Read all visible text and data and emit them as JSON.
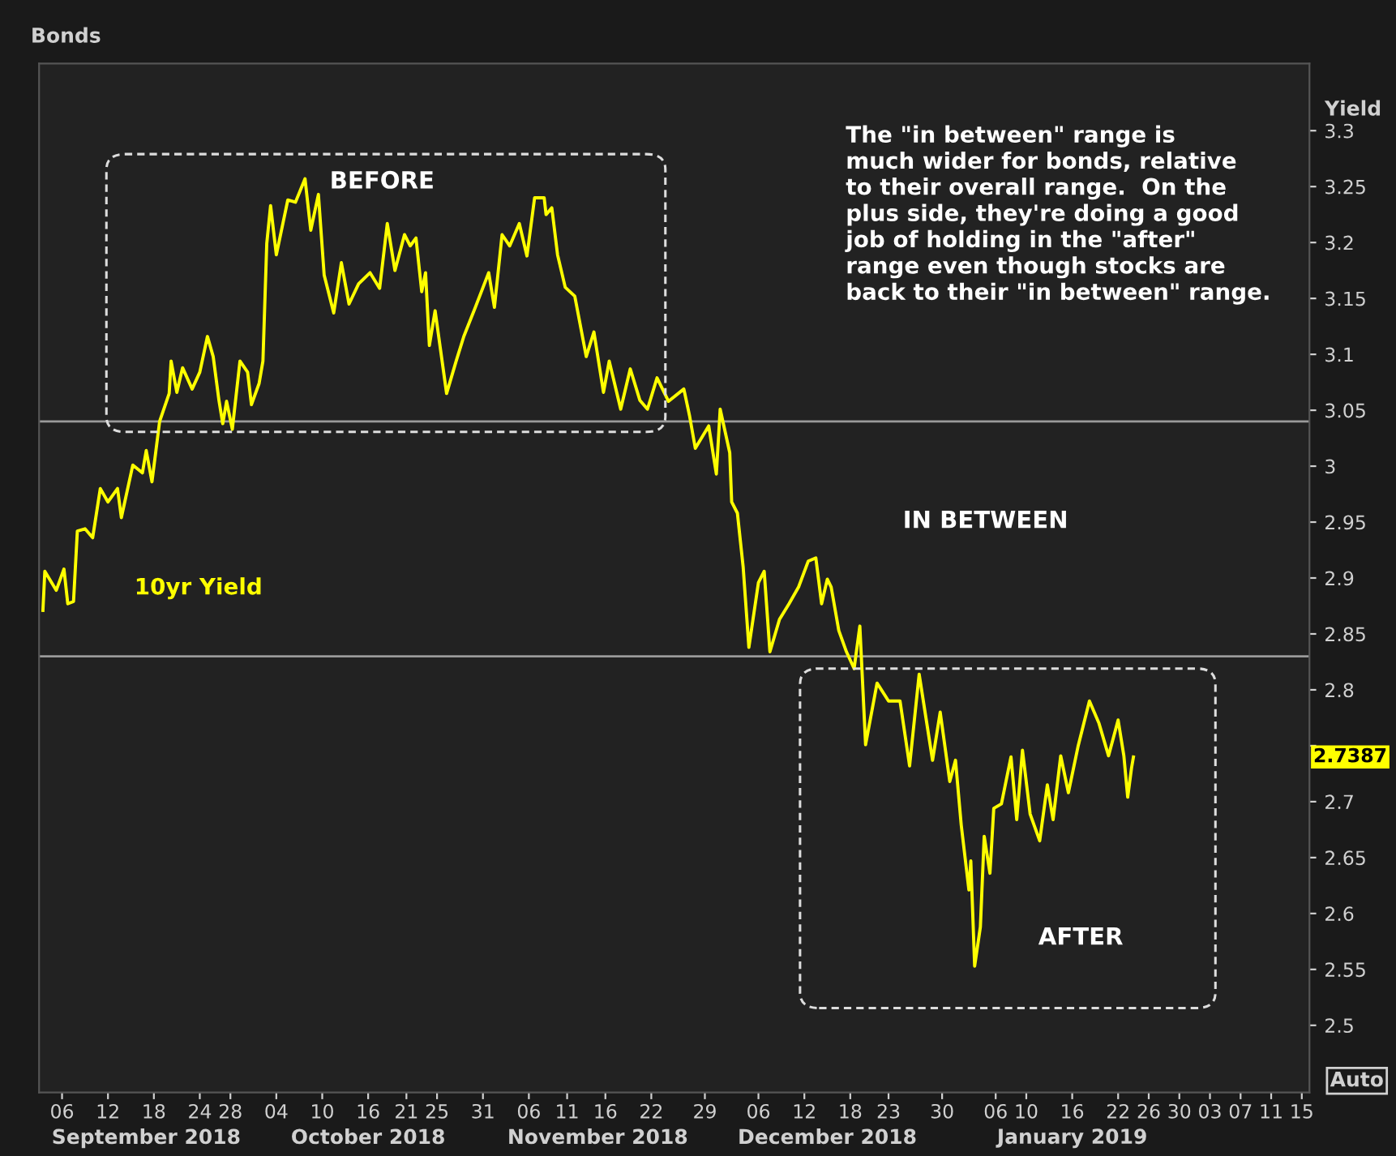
{
  "chart_data": {
    "type": "line",
    "title": "Bonds",
    "ylabel": "Yield",
    "xlim": [
      "2018-09-03",
      "2019-02-16"
    ],
    "ylim": [
      2.44,
      3.36
    ],
    "xticks": [
      {
        "value": "2018-09-06",
        "label": "06"
      },
      {
        "value": "2018-09-12",
        "label": "12"
      },
      {
        "value": "2018-09-18",
        "label": "18"
      },
      {
        "value": "2018-09-24",
        "label": "24"
      },
      {
        "value": "2018-09-28",
        "label": "28"
      },
      {
        "value": "2018-10-04",
        "label": "04"
      },
      {
        "value": "2018-10-10",
        "label": "10"
      },
      {
        "value": "2018-10-16",
        "label": "16"
      },
      {
        "value": "2018-10-21",
        "label": "21"
      },
      {
        "value": "2018-10-25",
        "label": "25"
      },
      {
        "value": "2018-10-31",
        "label": "31"
      },
      {
        "value": "2018-11-06",
        "label": "06"
      },
      {
        "value": "2018-11-11",
        "label": "11"
      },
      {
        "value": "2018-11-16",
        "label": "16"
      },
      {
        "value": "2018-11-22",
        "label": "22"
      },
      {
        "value": "2018-11-29",
        "label": "29"
      },
      {
        "value": "2018-12-06",
        "label": "06"
      },
      {
        "value": "2018-12-12",
        "label": "12"
      },
      {
        "value": "2018-12-18",
        "label": "18"
      },
      {
        "value": "2018-12-23",
        "label": "23"
      },
      {
        "value": "2018-12-30",
        "label": "30"
      },
      {
        "value": "2019-01-06",
        "label": "06"
      },
      {
        "value": "2019-01-10",
        "label": "10"
      },
      {
        "value": "2019-01-16",
        "label": "16"
      },
      {
        "value": "2019-01-22",
        "label": "22"
      },
      {
        "value": "2019-01-26",
        "label": "26"
      },
      {
        "value": "2019-01-30",
        "label": "30"
      },
      {
        "value": "2019-02-03",
        "label": "03"
      },
      {
        "value": "2019-02-07",
        "label": "07"
      },
      {
        "value": "2019-02-11",
        "label": "11"
      },
      {
        "value": "2019-02-15",
        "label": "15"
      }
    ],
    "x2lim": [
      "2018-09-03",
      "2019-02-16"
    ],
    "x2ticks": [
      {
        "value": "2018-09-17",
        "label": "September 2018"
      },
      {
        "value": "2018-10-16",
        "label": "October 2018"
      },
      {
        "value": "2018-11-15",
        "label": "November 2018"
      },
      {
        "value": "2018-12-15",
        "label": "December 2018"
      },
      {
        "value": "2019-01-16",
        "label": "January 2019"
      }
    ],
    "yticks": [
      2.5,
      2.55,
      2.6,
      2.65,
      2.7,
      {
        "value": 2.75,
        "label": null
      },
      2.8,
      2.85,
      2.9,
      2.95,
      3,
      3.05,
      3.1,
      3.15,
      3.2,
      3.25,
      3.3
    ],
    "grid": false,
    "ref_lines": [
      {
        "axis": "y",
        "value": 3.04,
        "color": "#9a9a9a"
      },
      {
        "axis": "y",
        "value": 2.83,
        "color": "#9a9a9a"
      }
    ],
    "annotations": [
      "The \"in between\" range is\nmuch wider for bonds, relative\nto their overall range.  On the\nplus side, they're doing a good\njob of holding in the \"after\"\nrange even though stocks are\nback to their \"in between\" range.",
      "BEFORE",
      "IN BETWEEN",
      "AFTER",
      "2.7387",
      "Auto"
    ],
    "series": [
      {
        "name": "10yr Yield",
        "color": "#ffff00",
        "x": [
          "2018-09-03T12:00",
          "2018-09-03T18:00",
          "2018-09-05T06:00",
          "2018-09-06T06:00",
          "2018-09-06T18:00",
          "2018-09-07T12:00",
          "2018-09-08",
          "2018-09-09",
          "2018-09-10",
          "2018-09-11",
          "2018-09-12",
          "2018-09-13T06:00",
          "2018-09-13T18:00",
          "2018-09-15T06:00",
          "2018-09-16T12:00",
          "2018-09-17",
          "2018-09-17T18:00",
          "2018-09-18T18:00",
          "2018-09-20",
          "2018-09-20T06:00",
          "2018-09-21",
          "2018-09-21T18:00",
          "2018-09-23",
          "2018-09-24",
          "2018-09-25",
          "2018-09-25T18:00",
          "2018-09-26T12:00",
          "2018-09-27",
          "2018-09-27T12:00",
          "2018-09-28T06:00",
          "2018-09-29T06:00",
          "2018-09-30T06:00",
          "2018-09-30T18:00",
          "2018-10-01T18:00",
          "2018-10-02T06:00",
          "2018-10-02T18:00",
          "2018-10-03T06:00",
          "2018-10-04",
          "2018-10-05T12:00",
          "2018-10-06T12:00",
          "2018-10-07T18:00",
          "2018-10-08T12:00",
          "2018-10-09T12:00",
          "2018-10-10T06:00",
          "2018-10-11T12:00",
          "2018-10-12T12:00",
          "2018-10-13T12:00",
          "2018-10-14T18:00",
          "2018-10-16T06:00",
          "2018-10-17T12:00",
          "2018-10-18T12:00",
          "2018-10-19T12:00",
          "2018-10-20T18:00",
          "2018-10-21T12:00",
          "2018-10-22T06:00",
          "2018-10-23",
          "2018-10-23T12:00",
          "2018-10-24",
          "2018-10-24T18:00",
          "2018-10-26T06:00",
          "2018-10-27T12:00",
          "2018-10-28T12:00",
          "2018-10-30",
          "2018-10-31T18:00",
          "2018-11-01T12:00",
          "2018-11-02T12:00",
          "2018-11-03T12:00",
          "2018-11-04T18:00",
          "2018-11-05T18:00",
          "2018-11-06T18:00",
          "2018-11-08",
          "2018-11-08T06:00",
          "2018-11-09",
          "2018-11-09T18:00",
          "2018-11-10T18:00",
          "2018-11-12",
          "2018-11-12T12:00",
          "2018-11-13T12:00",
          "2018-11-14T12:00",
          "2018-11-15T18:00",
          "2018-11-16T12:00",
          "2018-11-18",
          "2018-11-19T06:00",
          "2018-11-20T12:00",
          "2018-11-21T12:00",
          "2018-11-22T18:00",
          "2018-11-24T06:00",
          "2018-11-26T06:00",
          "2018-11-27",
          "2018-11-27T18:00",
          "2018-11-29T12:00",
          "2018-11-30T12:00",
          "2018-12-01",
          "2018-12-02T06:00",
          "2018-12-02T12:00",
          "2018-12-03T06:00",
          "2018-12-04",
          "2018-12-04T18:00",
          "2018-12-06",
          "2018-12-06T18:00",
          "2018-12-07T12:00",
          "2018-12-08T18:00",
          "2018-12-10",
          "2018-12-11T06:00",
          "2018-12-12T12:00",
          "2018-12-13T12:00",
          "2018-12-14T06:00",
          "2018-12-15",
          "2018-12-15T12:00",
          "2018-12-16T12:00",
          "2018-12-17T12:00",
          "2018-12-18T12:00",
          "2018-12-19T06:00",
          "2018-12-20",
          "2018-12-21T12:00",
          "2018-12-23",
          "2018-12-24T12:00",
          "2018-12-25T18:00",
          "2018-12-27",
          "2018-12-28T18:00",
          "2018-12-29T18:00",
          "2018-12-31",
          "2018-12-31T18:00",
          "2019-01-01T12:00",
          "2019-01-02T12:00",
          "2019-01-02T18:00",
          "2019-01-03T06:00",
          "2019-01-04",
          "2019-01-04T12:00",
          "2019-01-05T06:00",
          "2019-01-05T18:00",
          "2019-01-06T18:00",
          "2019-01-08",
          "2019-01-08T18:00",
          "2019-01-09T12:00",
          "2019-01-10T12:00",
          "2019-01-11T18:00",
          "2019-01-12T18:00",
          "2019-01-13T12:00",
          "2019-01-14T12:00",
          "2019-01-15T12:00",
          "2019-01-16T18:00",
          "2019-01-18T06:00",
          "2019-01-19T12:00",
          "2019-01-20T18:00",
          "2019-01-22",
          "2019-01-22T18:00",
          "2019-01-23T06:00",
          "2019-01-23T18:00",
          "2019-01-24"
        ],
        "values": [
          2.871,
          2.906,
          2.889,
          2.908,
          2.877,
          2.879,
          2.942,
          2.944,
          2.936,
          2.98,
          2.968,
          2.98,
          2.954,
          3.001,
          2.994,
          3.014,
          2.986,
          3.04,
          3.065,
          3.094,
          3.066,
          3.088,
          3.069,
          3.084,
          3.116,
          3.098,
          3.059,
          3.038,
          3.058,
          3.033,
          3.094,
          3.084,
          3.055,
          3.074,
          3.094,
          3.199,
          3.233,
          3.189,
          3.238,
          3.236,
          3.257,
          3.211,
          3.243,
          3.171,
          3.137,
          3.182,
          3.145,
          3.163,
          3.173,
          3.159,
          3.217,
          3.175,
          3.207,
          3.197,
          3.204,
          3.156,
          3.173,
          3.108,
          3.139,
          3.065,
          3.094,
          3.116,
          3.142,
          3.173,
          3.142,
          3.207,
          3.197,
          3.217,
          3.188,
          3.24,
          3.24,
          3.225,
          3.231,
          3.189,
          3.16,
          3.152,
          3.134,
          3.098,
          3.12,
          3.066,
          3.094,
          3.051,
          3.087,
          3.059,
          3.051,
          3.079,
          3.058,
          3.069,
          3.045,
          3.016,
          3.036,
          2.993,
          3.051,
          3.012,
          2.968,
          2.958,
          2.91,
          2.838,
          2.896,
          2.906,
          2.834,
          2.863,
          2.877,
          2.892,
          2.915,
          2.918,
          2.877,
          2.899,
          2.892,
          2.853,
          2.834,
          2.819,
          2.857,
          2.751,
          2.806,
          2.79,
          2.79,
          2.732,
          2.814,
          2.737,
          2.78,
          2.718,
          2.737,
          2.679,
          2.621,
          2.647,
          2.553,
          2.588,
          2.669,
          2.636,
          2.694,
          2.698,
          2.74,
          2.684,
          2.746,
          2.689,
          2.665,
          2.715,
          2.684,
          2.741,
          2.708,
          2.749,
          2.79,
          2.77,
          2.741,
          2.773,
          2.741,
          2.704,
          2.73,
          2.74
        ]
      }
    ]
  }
}
